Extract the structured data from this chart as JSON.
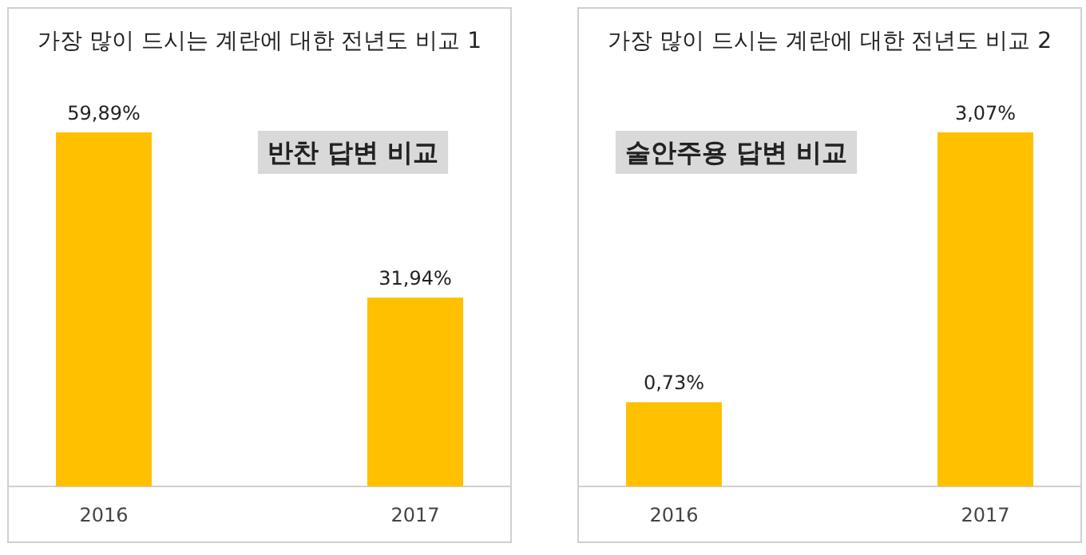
{
  "chart_data": [
    {
      "type": "bar",
      "title": "가장 많이 드시는 계란에 대한 전년도 비교 1",
      "categories": [
        "2016",
        "2017"
      ],
      "values": [
        59.89,
        31.94
      ],
      "value_labels": [
        "59,89%",
        "31,94%"
      ],
      "color": "#ffc000",
      "annotations": [
        "반찬 답변 비교"
      ]
    },
    {
      "type": "bar",
      "title": "가장 많이 드시는 계란에 대한 전년도 비교 2",
      "categories": [
        "2016",
        "2017"
      ],
      "values": [
        0.73,
        3.07
      ],
      "value_labels": [
        "0,73%",
        "3,07%"
      ],
      "color": "#ffc000",
      "annotations": [
        "술안주용 답변 비교"
      ]
    }
  ]
}
